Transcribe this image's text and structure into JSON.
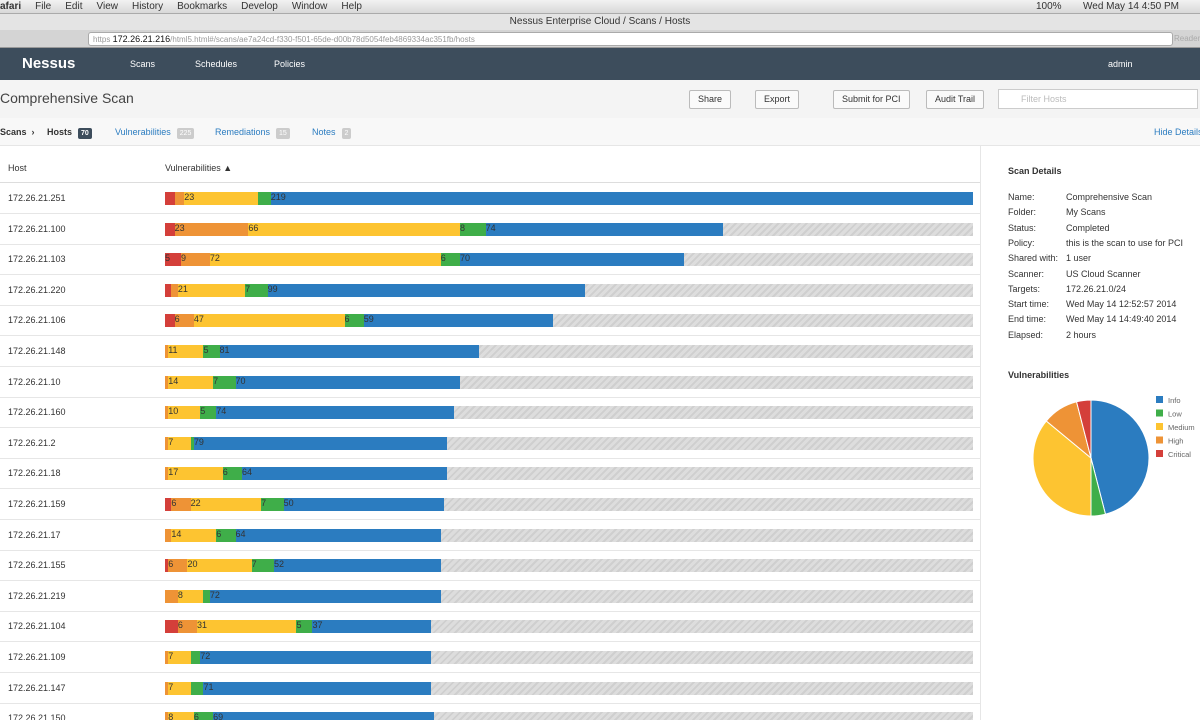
{
  "menubar": {
    "app": "afari",
    "items": [
      "File",
      "Edit",
      "View",
      "History",
      "Bookmarks",
      "Develop",
      "Window",
      "Help"
    ],
    "battery": "100%",
    "clock": "Wed May 14  4:50 PM"
  },
  "browser": {
    "title": "Nessus Enterprise Cloud / Scans / Hosts",
    "scheme": "https",
    "host": "172.26.21.216",
    "path": "/html5.html#/scans/ae7a24cd-f330-f501-65de-d00b78d5054feb4869334ac351fb/hosts",
    "reader": "Reader"
  },
  "nav": {
    "brand": "Nessus",
    "links": [
      "Scans",
      "Schedules",
      "Policies"
    ],
    "user": "admin"
  },
  "header": {
    "title": "Comprehensive Scan",
    "buttons": [
      "Share",
      "Export",
      "Submit for PCI",
      "Audit Trail"
    ],
    "filter": "Filter Hosts"
  },
  "tabs": {
    "crumb": "Scans",
    "items": [
      {
        "label": "Hosts",
        "count": 70
      },
      {
        "label": "Vulnerabilities",
        "count": 225
      },
      {
        "label": "Remediations",
        "count": 15
      },
      {
        "label": "Notes",
        "count": 2
      }
    ],
    "hide": "Hide Details"
  },
  "table": {
    "columns": [
      "Host",
      "Vulnerabilities"
    ],
    "rows": [
      {
        "host": "172.26.21.251",
        "counts": [
          3,
          3,
          23,
          4,
          219
        ]
      },
      {
        "host": "172.26.21.100",
        "counts": [
          3,
          23,
          66,
          8,
          74
        ]
      },
      {
        "host": "172.26.21.103",
        "counts": [
          5,
          9,
          72,
          6,
          70
        ]
      },
      {
        "host": "172.26.21.220",
        "counts": [
          2,
          2,
          21,
          7,
          99
        ]
      },
      {
        "host": "172.26.21.106",
        "counts": [
          3,
          6,
          47,
          6,
          59
        ]
      },
      {
        "host": "172.26.21.148",
        "counts": [
          0,
          1,
          11,
          5,
          81
        ]
      },
      {
        "host": "172.26.21.10",
        "counts": [
          0,
          1,
          14,
          7,
          70
        ]
      },
      {
        "host": "172.26.21.160",
        "counts": [
          0,
          1,
          10,
          5,
          74
        ]
      },
      {
        "host": "172.26.21.2",
        "counts": [
          0,
          1,
          7,
          1,
          79
        ]
      },
      {
        "host": "172.26.21.18",
        "counts": [
          0,
          1,
          17,
          6,
          64
        ]
      },
      {
        "host": "172.26.21.159",
        "counts": [
          2,
          6,
          22,
          7,
          50
        ]
      },
      {
        "host": "172.26.21.17",
        "counts": [
          0,
          2,
          14,
          6,
          64
        ]
      },
      {
        "host": "172.26.21.155",
        "counts": [
          1,
          6,
          20,
          7,
          52
        ]
      },
      {
        "host": "172.26.21.219",
        "counts": [
          0,
          4,
          8,
          2,
          72
        ]
      },
      {
        "host": "172.26.21.104",
        "counts": [
          4,
          6,
          31,
          5,
          37
        ]
      },
      {
        "host": "172.26.21.109",
        "counts": [
          0,
          1,
          7,
          3,
          72
        ]
      },
      {
        "host": "172.26.21.147",
        "counts": [
          0,
          1,
          7,
          4,
          71
        ]
      },
      {
        "host": "172.26.21.150",
        "counts": [
          0,
          1,
          8,
          6,
          69
        ]
      }
    ]
  },
  "details": {
    "title": "Scan Details",
    "fields": [
      [
        "Name:",
        "Comprehensive Scan"
      ],
      [
        "Folder:",
        "My Scans"
      ],
      [
        "Status:",
        "Completed"
      ],
      [
        "Policy:",
        "this is the scan to use for PCI"
      ],
      [
        "Shared with:",
        "1 user"
      ],
      [
        "Scanner:",
        "US Cloud Scanner"
      ],
      [
        "Targets:",
        "172.26.21.0/24"
      ],
      [
        "Start time:",
        "Wed May 14 12:52:57 2014"
      ],
      [
        "End time:",
        "Wed May 14 14:49:40 2014"
      ],
      [
        "Elapsed:",
        "2 hours"
      ]
    ]
  },
  "chart_data": {
    "type": "pie",
    "title": "Vulnerabilities",
    "categories": [
      "Info",
      "Low",
      "Medium",
      "High",
      "Critical"
    ],
    "values": [
      46,
      4,
      36,
      10,
      4
    ],
    "colors": [
      "#2b7cc0",
      "#3fae49",
      "#fdc431",
      "#ee9336",
      "#d43f3a"
    ]
  }
}
